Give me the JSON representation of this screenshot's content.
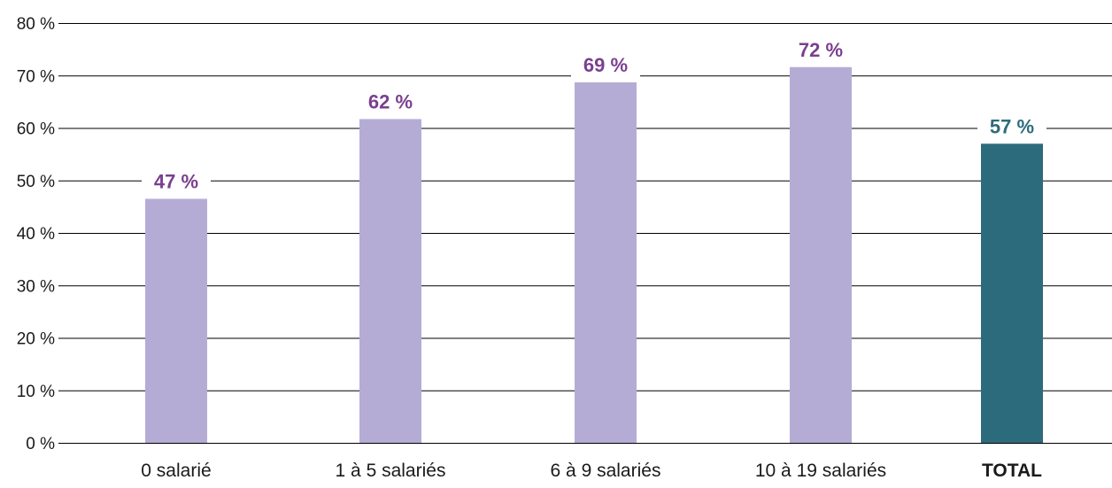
{
  "chart_data": {
    "type": "bar",
    "title": "",
    "xlabel": "",
    "ylabel": "",
    "ylim": [
      0,
      80
    ],
    "y_ticks": [
      0,
      10,
      20,
      30,
      40,
      50,
      60,
      70,
      80
    ],
    "y_tick_labels": [
      "0 %",
      "10 %",
      "20 %",
      "30 %",
      "40 %",
      "50 %",
      "60 %",
      "70 %",
      "80 %"
    ],
    "grid": true,
    "legend": "none",
    "categories": [
      "0 salarié",
      "1 à 5 salariés",
      "6 à 9 salariés",
      "10 à 19 salariés",
      "TOTAL"
    ],
    "values": [
      46.5,
      61.7,
      68.7,
      71.6,
      57.0
    ],
    "data_labels": [
      "47 %",
      "62 %",
      "69 %",
      "72 %",
      "57 %"
    ],
    "colors": {
      "bar": "#b5acd6",
      "bar_total": "#2c6b7c",
      "label": "#7b3f8f",
      "label_total": "#2c6b7c",
      "grid": "#000000"
    }
  }
}
